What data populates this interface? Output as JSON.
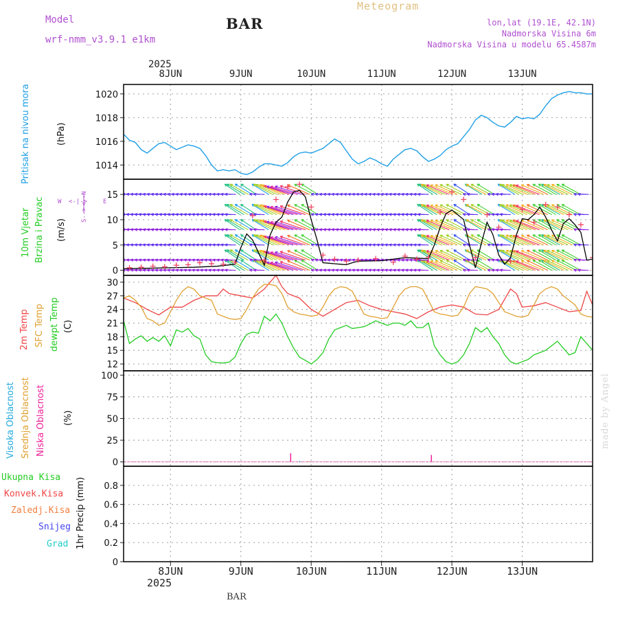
{
  "header": {
    "title": "BAR",
    "subtitle": "Meteogram",
    "model_label": "Model",
    "model_name": "wrf-nmm_v3.9.1 e1km",
    "coords": "lon,lat (19.1E, 42.1N)",
    "altitude": "Nadmorska Visina 6m",
    "model_altitude": "Nadmorska Visina u modelu 65.4587m",
    "footer_label": "BAR",
    "credit": "made by Angel"
  },
  "colors": {
    "purple_text": "#b050d0",
    "gold_text": "#e0c080",
    "pressure": "#1e9fe6",
    "temp2m": "#ee4444",
    "sfc_temp": "#e0a030",
    "dewpoint": "#22cc22",
    "high_cloud": "#22aadd",
    "mid_cloud": "#e0a030",
    "low_cloud": "#ee2299",
    "wind_speed": "#000000",
    "gust": "#ee4466",
    "grid": "#aaaaaa"
  },
  "chart_data": {
    "type": "line",
    "x_axis": {
      "top_year": "2025",
      "bottom_year": "2025",
      "days": [
        "8JUN",
        "9JUN",
        "10JUN",
        "11JUN",
        "12JUN",
        "13JUN"
      ],
      "range_hours": [
        -16,
        144
      ]
    },
    "panels": {
      "pressure": {
        "ylabel_main": "Pritisak na nivou mora",
        "unit": "(hPa)",
        "ylim": [
          1012.8,
          1020.8
        ],
        "ticks": [
          1014,
          1016,
          1018,
          1020
        ],
        "series": [
          {
            "key": "mslp",
            "x": [
              -16,
              -14,
              -12,
              -10,
              -8,
              -6,
              -4,
              -2,
              0,
              2,
              4,
              6,
              8,
              10,
              12,
              14,
              16,
              18,
              20,
              22,
              24,
              26,
              28,
              30,
              32,
              34,
              36,
              38,
              40,
              42,
              44,
              46,
              48,
              50,
              52,
              54,
              56,
              58,
              60,
              62,
              64,
              66,
              68,
              70,
              72,
              74,
              76,
              78,
              80,
              82,
              84,
              86,
              88,
              90,
              92,
              94,
              96,
              98,
              100,
              102,
              104,
              106,
              108,
              110,
              112,
              114,
              116,
              118,
              120,
              122,
              124,
              126,
              128,
              130,
              132,
              134,
              136,
              138,
              140,
              142,
              144
            ],
            "y": [
              1016.6,
              1016.1,
              1015.9,
              1015.3,
              1015.0,
              1015.4,
              1015.8,
              1015.9,
              1015.6,
              1015.3,
              1015.5,
              1015.7,
              1015.6,
              1015.4,
              1014.8,
              1014.0,
              1013.5,
              1013.6,
              1013.5,
              1013.6,
              1013.3,
              1013.2,
              1013.4,
              1013.8,
              1014.1,
              1014.1,
              1014.0,
              1013.9,
              1014.2,
              1014.7,
              1015.0,
              1015.1,
              1015.0,
              1015.2,
              1015.4,
              1015.8,
              1016.2,
              1015.9,
              1015.2,
              1014.5,
              1014.1,
              1014.3,
              1014.6,
              1014.4,
              1014.1,
              1013.9,
              1014.5,
              1014.9,
              1015.3,
              1015.4,
              1015.2,
              1014.7,
              1014.3,
              1014.5,
              1014.8,
              1015.3,
              1015.6,
              1015.8,
              1016.4,
              1017.0,
              1017.8,
              1018.2,
              1018.0,
              1017.6,
              1017.3,
              1017.2,
              1017.6,
              1018.1,
              1017.9,
              1018.0,
              1017.9,
              1018.3,
              1019.0,
              1019.6,
              1019.9,
              1020.1,
              1020.2,
              1020.1,
              1020.1,
              1020.0,
              1020.0
            ]
          }
        ]
      },
      "wind": {
        "ylabel_main": "10m Vjetar",
        "ylabel_sub": "Brzina i Pravac",
        "unit": "(m/s)",
        "compass": {
          "n": "N",
          "s": "S",
          "e": "E",
          "w": "W"
        },
        "ylim": [
          -1,
          18
        ],
        "ticks": [
          0,
          5,
          10,
          15
        ],
        "speed": {
          "x": [
            -16,
            -8,
            0,
            8,
            16,
            22,
            24,
            26,
            28,
            30,
            32,
            34,
            36,
            38,
            40,
            42,
            44,
            46,
            48,
            50,
            52,
            54,
            56,
            58,
            60,
            62,
            64,
            72,
            80,
            88,
            90,
            92,
            94,
            96,
            98,
            100,
            102,
            104,
            106,
            108,
            110,
            112,
            114,
            116,
            118,
            120,
            122,
            124,
            126,
            128,
            130,
            132,
            134,
            136,
            138,
            140,
            142,
            144
          ],
          "y": [
            0.3,
            0.4,
            0.5,
            0.6,
            0.8,
            1.2,
            4.5,
            7.2,
            6.0,
            3.5,
            1.0,
            7.0,
            9.5,
            10.5,
            13.5,
            15.5,
            15.8,
            14.5,
            10.0,
            6.0,
            1.5,
            1.4,
            1.3,
            1.2,
            1.1,
            1.5,
            1.8,
            1.9,
            2.5,
            2.3,
            5.0,
            8.5,
            11.2,
            11.9,
            11.0,
            10.0,
            5.0,
            0.5,
            5.2,
            9.5,
            7.0,
            3.0,
            1.2,
            2.5,
            7.0,
            10.2,
            10.0,
            11.0,
            12.5,
            10.5,
            8.0,
            5.8,
            9.2,
            10.2,
            9.0,
            7.5,
            2.0,
            2.2
          ]
        },
        "gust": {
          "x": [
            -14,
            -10,
            -6,
            -2,
            2,
            6,
            10,
            14,
            18,
            22,
            28,
            32,
            36,
            40,
            44,
            48,
            52,
            56,
            60,
            64,
            70,
            76,
            80,
            84,
            88,
            92,
            96,
            100,
            104,
            108,
            112,
            116,
            120,
            124,
            128,
            132,
            136,
            140,
            144
          ],
          "y": [
            0.5,
            0.6,
            0.8,
            0.7,
            1.0,
            1.1,
            1.5,
            1.3,
            1.2,
            1.6,
            10.8,
            2.0,
            14.0,
            16.5,
            17.0,
            12.5,
            3.0,
            2.2,
            1.8,
            2.0,
            2.3,
            1.6,
            2.8,
            2.2,
            2.6,
            11.5,
            15.5,
            14.0,
            2.5,
            11.0,
            8.5,
            1.8,
            12.0,
            9.5,
            13.0,
            12.5,
            11.0,
            9.0,
            2.5
          ]
        }
      },
      "temperature": {
        "labels": [
          "2m Temp",
          "SFC Temp",
          "dewpt Temp"
        ],
        "unit": "(C)",
        "ylim": [
          10.5,
          31.5
        ],
        "ticks": [
          12,
          15,
          18,
          21,
          24,
          27,
          30
        ],
        "series": [
          {
            "key": "t2m",
            "x": [
              -16,
              -12,
              -8,
              -4,
              0,
              4,
              8,
              12,
              16,
              18,
              20,
              24,
              28,
              32,
              34,
              36,
              38,
              40,
              44,
              48,
              52,
              56,
              60,
              64,
              68,
              72,
              76,
              80,
              84,
              88,
              92,
              96,
              100,
              104,
              108,
              112,
              116,
              118,
              120,
              124,
              128,
              132,
              136,
              140,
              142,
              144
            ],
            "y": [
              26.5,
              25.5,
              24.0,
              22.8,
              24.5,
              24.5,
              26.0,
              27.0,
              27.0,
              28.5,
              27.5,
              27.0,
              26.5,
              28.5,
              30.0,
              31.5,
              29.0,
              27.5,
              26.5,
              24.0,
              22.5,
              24.0,
              25.5,
              26.0,
              24.8,
              24.0,
              23.5,
              23.0,
              22.0,
              23.5,
              24.5,
              25.0,
              24.5,
              23.0,
              22.8,
              24.0,
              28.5,
              27.5,
              24.5,
              24.8,
              25.5,
              24.5,
              23.5,
              23.8,
              28.0,
              25.0
            ]
          },
          {
            "key": "sfc",
            "x": [
              -16,
              -14,
              -12,
              -10,
              -8,
              -6,
              -4,
              -2,
              0,
              2,
              4,
              6,
              8,
              10,
              12,
              14,
              16,
              18,
              20,
              22,
              24,
              26,
              28,
              30,
              32,
              34,
              36,
              38,
              40,
              42,
              44,
              46,
              48,
              50,
              52,
              54,
              56,
              58,
              60,
              62,
              64,
              66,
              68,
              70,
              72,
              74,
              76,
              78,
              80,
              82,
              84,
              86,
              88,
              90,
              92,
              94,
              96,
              98,
              100,
              102,
              104,
              106,
              108,
              110,
              112,
              114,
              116,
              118,
              120,
              122,
              124,
              126,
              128,
              130,
              132,
              134,
              136,
              138,
              140,
              142,
              144
            ],
            "y": [
              26.5,
              27.0,
              26.0,
              24.5,
              22.0,
              21.5,
              20.5,
              21.0,
              23.5,
              26.0,
              28.0,
              29.0,
              28.5,
              27.0,
              26.5,
              26.0,
              23.0,
              22.5,
              22.0,
              21.8,
              22.0,
              24.0,
              26.5,
              28.5,
              29.5,
              29.5,
              29.2,
              27.5,
              24.5,
              23.5,
              23.0,
              22.8,
              22.5,
              22.7,
              24.5,
              27.0,
              28.5,
              29.0,
              28.8,
              28.0,
              25.5,
              23.0,
              22.5,
              22.3,
              22.0,
              22.2,
              24.5,
              27.0,
              28.5,
              29.0,
              29.0,
              28.5,
              26.0,
              23.5,
              23.0,
              22.8,
              22.5,
              22.7,
              24.5,
              27.5,
              29.0,
              28.8,
              28.5,
              27.5,
              25.5,
              23.5,
              23.0,
              22.5,
              22.3,
              22.7,
              25.0,
              27.5,
              28.5,
              29.0,
              28.5,
              27.0,
              26.0,
              25.0,
              23.0,
              22.5,
              22.3
            ]
          },
          {
            "key": "dewpt",
            "x": [
              -16,
              -14,
              -12,
              -10,
              -8,
              -6,
              -4,
              -2,
              0,
              2,
              4,
              6,
              8,
              10,
              12,
              14,
              16,
              18,
              20,
              22,
              24,
              26,
              28,
              30,
              32,
              34,
              36,
              38,
              40,
              42,
              44,
              46,
              48,
              50,
              52,
              54,
              56,
              58,
              60,
              62,
              64,
              66,
              68,
              70,
              72,
              74,
              76,
              78,
              80,
              82,
              84,
              86,
              88,
              90,
              92,
              94,
              96,
              98,
              100,
              102,
              104,
              106,
              108,
              110,
              112,
              114,
              116,
              118,
              120,
              122,
              124,
              126,
              128,
              130,
              132,
              134,
              136,
              138,
              140,
              142,
              144
            ],
            "y": [
              21.5,
              16.5,
              17.5,
              18.2,
              17.0,
              17.8,
              17.0,
              18.2,
              16.0,
              19.5,
              19.0,
              19.8,
              18.2,
              17.5,
              14.0,
              12.5,
              12.3,
              12.2,
              12.4,
              13.5,
              16.5,
              18.5,
              19.0,
              18.8,
              22.5,
              21.5,
              23.0,
              21.0,
              18.0,
              15.5,
              13.5,
              12.8,
              12.0,
              13.0,
              14.5,
              17.5,
              19.5,
              20.0,
              20.5,
              19.8,
              20.0,
              20.2,
              20.8,
              21.5,
              21.0,
              20.5,
              21.0,
              21.0,
              20.5,
              21.5,
              20.0,
              20.0,
              21.0,
              16.0,
              14.0,
              12.5,
              12.0,
              12.5,
              14.0,
              16.5,
              20.0,
              19.0,
              20.0,
              18.0,
              16.5,
              14.0,
              12.5,
              12.0,
              12.5,
              13.0,
              14.0,
              14.5,
              15.0,
              16.0,
              17.0,
              15.5,
              14.0,
              14.5,
              18.0,
              16.5,
              15.0
            ]
          }
        ]
      },
      "cloud": {
        "labels": [
          "Visoka Oblacnost",
          "Srednja Oblacnost",
          "Niska Oblacnost"
        ],
        "unit": "(%)",
        "ylim": [
          -5,
          105
        ],
        "ticks": [
          0,
          25,
          50,
          75,
          100
        ],
        "bars": [
          {
            "key": "low",
            "x": 41,
            "y": 10
          },
          {
            "key": "high",
            "x": 44,
            "y": 1
          },
          {
            "key": "mid",
            "x": 47,
            "y": 1
          },
          {
            "key": "low",
            "x": 89,
            "y": 8
          }
        ]
      },
      "precip": {
        "legend": [
          "Ukupna Kisa",
          "Konvek.Kisa",
          "Zaledj.Kisa",
          "Snijeg",
          "Grad"
        ],
        "legend_colors": [
          "#22cc22",
          "#ee4444",
          "#f08040",
          "#4444ee",
          "#22cccc"
        ],
        "ylabel": "1hr Precip (mm)",
        "ylim": [
          0,
          1.0
        ],
        "ticks": [
          0,
          0.2,
          0.4,
          0.6,
          0.8
        ],
        "tick_labels": [
          "0",
          "0.2",
          "0.4",
          "0.6",
          "0.8"
        ],
        "values": []
      }
    },
    "wind_rows": {
      "rows": [
        0,
        2,
        5,
        8,
        11,
        15
      ],
      "spacing_hours": 1.4,
      "glyph": "arrow"
    }
  }
}
